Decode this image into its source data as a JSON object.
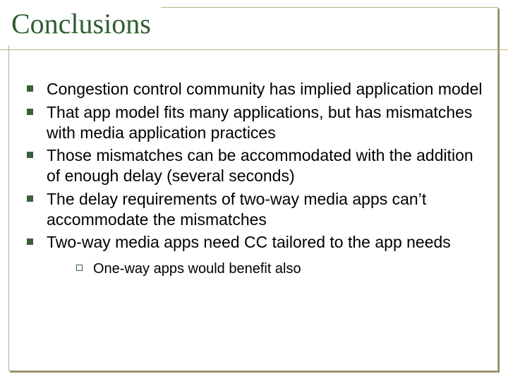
{
  "colors": {
    "frame_border": "#b9b08a",
    "frame_shadow": "#8f8966",
    "title_text": "#2f5e2f",
    "underline": "#b9b08a",
    "bullet_fill": "#3a5f3a",
    "subbullet_border": "#3a5f3a",
    "body_text": "#000000"
  },
  "title": "Conclusions",
  "bullets": [
    "Congestion control community has implied application model",
    "That app model fits many applications, but has mismatches with media application practices",
    "Those mismatches can be accommodated with the addition of enough delay (several seconds)",
    "The delay requirements of two-way media apps can’t accommodate the mismatches",
    "Two-way media apps need CC tailored to the app needs"
  ],
  "sub_bullets": [
    "One-way apps would benefit also"
  ]
}
